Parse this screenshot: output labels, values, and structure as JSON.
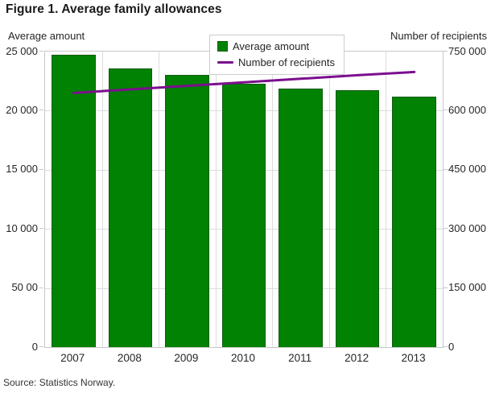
{
  "title": "Figure 1. Average family allowances",
  "source": "Source: Statistics Norway.",
  "legend": {
    "items": [
      {
        "label": "Average amount",
        "type": "bar",
        "color": "#028202"
      },
      {
        "label": "Number of recipients",
        "type": "line",
        "color": "#7b0f8e"
      }
    ]
  },
  "chart_data": {
    "type": "bar",
    "title": "Figure 1. Average family allowances",
    "categories": [
      "2007",
      "2008",
      "2009",
      "2010",
      "2011",
      "2012",
      "2013"
    ],
    "series": [
      {
        "name": "Average amount",
        "type": "bar",
        "axis": "left",
        "color": "#028202",
        "values": [
          24700,
          23600,
          23000,
          22300,
          21900,
          21700,
          21200
        ]
      },
      {
        "name": "Number of recipients",
        "type": "line",
        "axis": "right",
        "color": "#7b0f8e",
        "values": [
          645000,
          654000,
          663000,
          672000,
          681000,
          690000,
          698000
        ]
      }
    ],
    "left_axis": {
      "title": "Average amount",
      "min": 0,
      "max": 25000,
      "tick_step": 5000,
      "tick_labels": [
        "0",
        "50 00",
        "10 000",
        "15 000",
        "20 000",
        "25 000"
      ]
    },
    "right_axis": {
      "title": "Number of recipients",
      "min": 0,
      "max": 750000,
      "tick_step": 150000,
      "tick_labels": [
        "0",
        "150 000",
        "300 000",
        "450 000",
        "600 000",
        "750 000"
      ]
    },
    "grid": true,
    "legend_position": "top-center"
  }
}
